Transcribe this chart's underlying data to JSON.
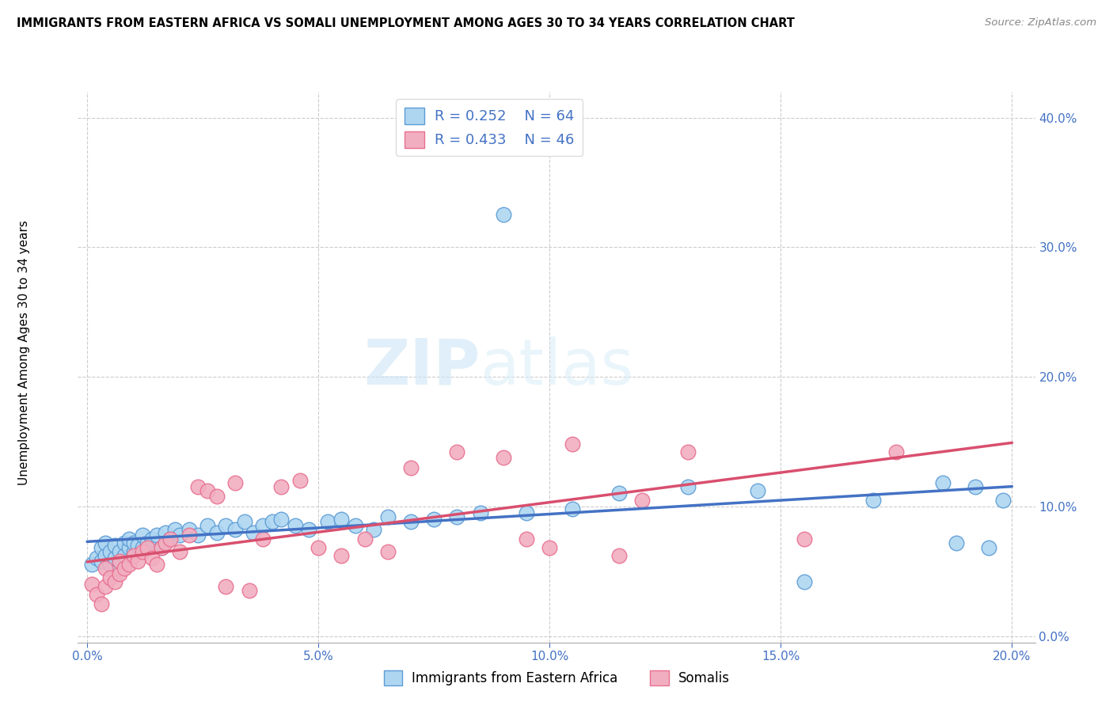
{
  "title": "IMMIGRANTS FROM EASTERN AFRICA VS SOMALI UNEMPLOYMENT AMONG AGES 30 TO 34 YEARS CORRELATION CHART",
  "source": "Source: ZipAtlas.com",
  "ylabel": "Unemployment Among Ages 30 to 34 years",
  "xlabel_ticks": [
    "0.0%",
    "5.0%",
    "10.0%",
    "15.0%",
    "20.0%"
  ],
  "xlabel_vals": [
    0.0,
    0.05,
    0.1,
    0.15,
    0.2
  ],
  "ylabel_ticks": [
    "0.0%",
    "10.0%",
    "20.0%",
    "30.0%",
    "40.0%"
  ],
  "ylabel_vals": [
    0.0,
    0.1,
    0.2,
    0.3,
    0.4
  ],
  "xlim": [
    -0.002,
    0.205
  ],
  "ylim": [
    -0.005,
    0.42
  ],
  "blue_R": "0.252",
  "blue_N": "64",
  "pink_R": "0.433",
  "pink_N": "46",
  "blue_color": "#aed6f1",
  "pink_color": "#f1aec0",
  "blue_edge_color": "#5b9bd5",
  "pink_edge_color": "#e87090",
  "blue_line_color": "#4472c4",
  "pink_line_color": "#d94f6e",
  "legend_label_blue": "Immigrants from Eastern Africa",
  "legend_label_pink": "Somalis",
  "watermark_zip": "ZIP",
  "watermark_atlas": "atlas",
  "blue_scatter_x": [
    0.001,
    0.002,
    0.003,
    0.003,
    0.004,
    0.004,
    0.005,
    0.005,
    0.006,
    0.006,
    0.007,
    0.007,
    0.008,
    0.008,
    0.009,
    0.009,
    0.01,
    0.01,
    0.011,
    0.012,
    0.012,
    0.013,
    0.014,
    0.015,
    0.016,
    0.017,
    0.018,
    0.019,
    0.02,
    0.022,
    0.024,
    0.026,
    0.028,
    0.03,
    0.032,
    0.034,
    0.036,
    0.038,
    0.04,
    0.042,
    0.045,
    0.048,
    0.052,
    0.055,
    0.058,
    0.062,
    0.065,
    0.07,
    0.075,
    0.08,
    0.085,
    0.09,
    0.095,
    0.105,
    0.115,
    0.13,
    0.145,
    0.155,
    0.17,
    0.185,
    0.188,
    0.192,
    0.195,
    0.198
  ],
  "blue_scatter_y": [
    0.055,
    0.06,
    0.058,
    0.068,
    0.062,
    0.072,
    0.055,
    0.065,
    0.06,
    0.07,
    0.058,
    0.065,
    0.062,
    0.072,
    0.068,
    0.075,
    0.065,
    0.072,
    0.07,
    0.068,
    0.078,
    0.072,
    0.075,
    0.078,
    0.068,
    0.08,
    0.075,
    0.082,
    0.078,
    0.082,
    0.078,
    0.085,
    0.08,
    0.085,
    0.082,
    0.088,
    0.08,
    0.085,
    0.088,
    0.09,
    0.085,
    0.082,
    0.088,
    0.09,
    0.085,
    0.082,
    0.092,
    0.088,
    0.09,
    0.092,
    0.095,
    0.325,
    0.095,
    0.098,
    0.11,
    0.115,
    0.112,
    0.042,
    0.105,
    0.118,
    0.072,
    0.115,
    0.068,
    0.105
  ],
  "pink_scatter_x": [
    0.001,
    0.002,
    0.003,
    0.004,
    0.004,
    0.005,
    0.006,
    0.007,
    0.007,
    0.008,
    0.009,
    0.01,
    0.011,
    0.012,
    0.013,
    0.014,
    0.015,
    0.016,
    0.017,
    0.018,
    0.02,
    0.022,
    0.024,
    0.026,
    0.028,
    0.03,
    0.032,
    0.035,
    0.038,
    0.042,
    0.046,
    0.05,
    0.055,
    0.06,
    0.065,
    0.07,
    0.08,
    0.09,
    0.095,
    0.1,
    0.105,
    0.115,
    0.12,
    0.13,
    0.155,
    0.175
  ],
  "pink_scatter_y": [
    0.04,
    0.032,
    0.025,
    0.038,
    0.052,
    0.045,
    0.042,
    0.048,
    0.058,
    0.052,
    0.055,
    0.062,
    0.058,
    0.065,
    0.068,
    0.06,
    0.055,
    0.068,
    0.072,
    0.075,
    0.065,
    0.078,
    0.115,
    0.112,
    0.108,
    0.038,
    0.118,
    0.035,
    0.075,
    0.115,
    0.12,
    0.068,
    0.062,
    0.075,
    0.065,
    0.13,
    0.142,
    0.138,
    0.075,
    0.068,
    0.148,
    0.062,
    0.105,
    0.142,
    0.075,
    0.142
  ]
}
